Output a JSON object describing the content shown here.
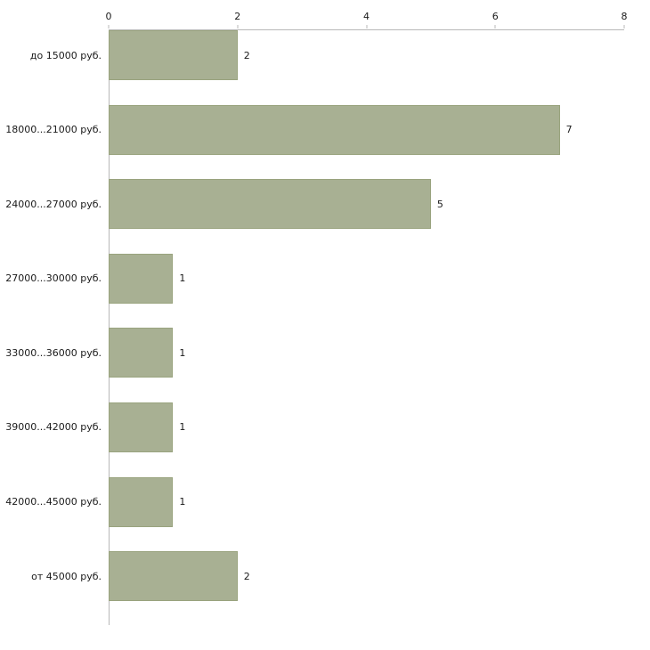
{
  "chart_data": {
    "type": "bar",
    "orientation": "horizontal",
    "title": "",
    "xlabel": "",
    "ylabel": "",
    "categories": [
      "до 15000 руб.",
      "18000...21000 руб.",
      "24000...27000 руб.",
      "27000...30000 руб.",
      "33000...36000 руб.",
      "39000...42000 руб.",
      "42000...45000 руб.",
      "от 45000 руб."
    ],
    "values": [
      2,
      7,
      5,
      1,
      1,
      1,
      1,
      2
    ],
    "xlim": [
      0,
      8
    ],
    "x_ticks": [
      0,
      2,
      4,
      6,
      8
    ],
    "grid": false,
    "legend": false,
    "axis_position": "top",
    "bar_color": "#a8b093",
    "bar_border_color": "#99a37e",
    "axis_color": "#b8b8b8",
    "text_color": "#1a1a1a",
    "background_color": "#ffffff"
  }
}
